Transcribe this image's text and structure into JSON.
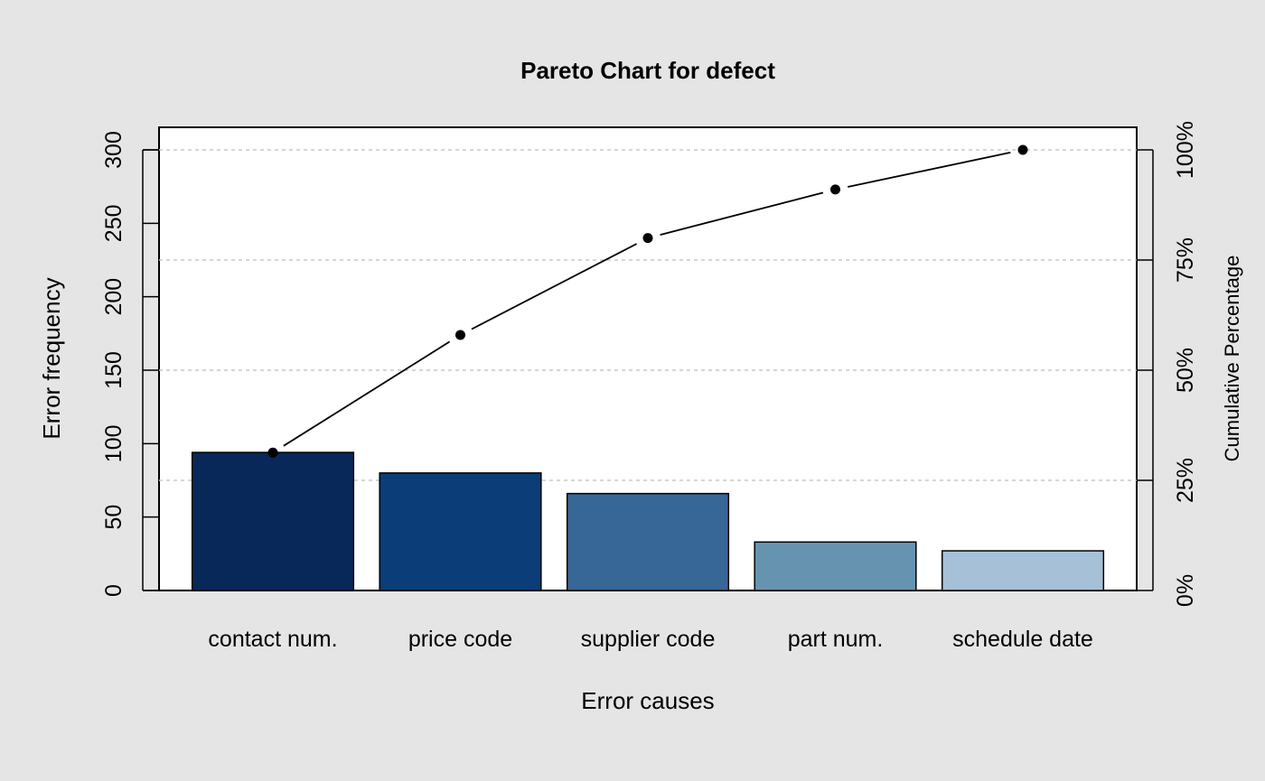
{
  "chart_data": {
    "type": "bar",
    "title": "Pareto Chart for defect",
    "xlabel": "Error causes",
    "ylabel": "Error frequency",
    "y2label": "Cumulative Percentage",
    "categories": [
      "contact num.",
      "price code",
      "supplier code",
      "part num.",
      "schedule date"
    ],
    "values": [
      94,
      80,
      66,
      33,
      27
    ],
    "cumulative_percent": [
      31.3,
      58.0,
      80.0,
      91.0,
      100.0
    ],
    "ylim": [
      0,
      300
    ],
    "y_ticks": [
      0,
      50,
      100,
      150,
      200,
      250,
      300
    ],
    "y2_ticks": [
      "0%",
      "25%",
      "50%",
      "75%",
      "100%"
    ],
    "bar_colors": [
      "#08285a",
      "#0b3d78",
      "#376796",
      "#6694b0",
      "#a6c0d7"
    ],
    "grid": "dashed horizontal at cumulative percentage ticks"
  }
}
